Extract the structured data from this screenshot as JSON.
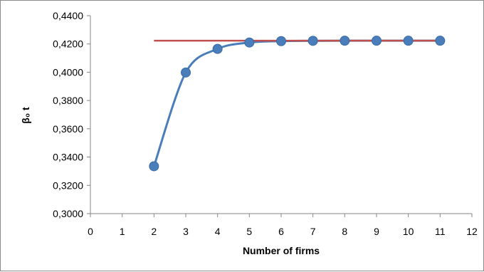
{
  "chart_data": {
    "type": "line",
    "title": "",
    "xlabel": "Number of firms",
    "ylabel": "β₀ t",
    "xlim": [
      0,
      12
    ],
    "ylim": [
      0.3,
      0.44
    ],
    "x_ticks": [
      0,
      1,
      2,
      3,
      4,
      5,
      6,
      7,
      8,
      9,
      10,
      11,
      12
    ],
    "x_tick_labels": [
      "0",
      "1",
      "2",
      "3",
      "4",
      "5",
      "6",
      "7",
      "8",
      "9",
      "10",
      "11",
      "12"
    ],
    "y_ticks": [
      0.3,
      0.32,
      0.34,
      0.36,
      0.38,
      0.4,
      0.42,
      0.44
    ],
    "y_tick_labels": [
      "0,3000",
      "0,3200",
      "0,3400",
      "0,3600",
      "0,3800",
      "0,4000",
      "0,4200",
      "0,4400"
    ],
    "grid": false,
    "legend": "none",
    "series": [
      {
        "type": "line-markers",
        "smooth": true,
        "color": "#4a7ebb",
        "x": [
          2,
          3,
          4,
          5,
          6,
          7,
          8,
          9,
          10,
          11
        ],
        "y": [
          0.3335,
          0.3998,
          0.4165,
          0.421,
          0.422,
          0.4222,
          0.4223,
          0.4223,
          0.4223,
          0.4223
        ]
      },
      {
        "type": "line",
        "color": "#c0504d",
        "x": [
          2,
          11
        ],
        "y": [
          0.4223,
          0.4223
        ]
      }
    ]
  }
}
